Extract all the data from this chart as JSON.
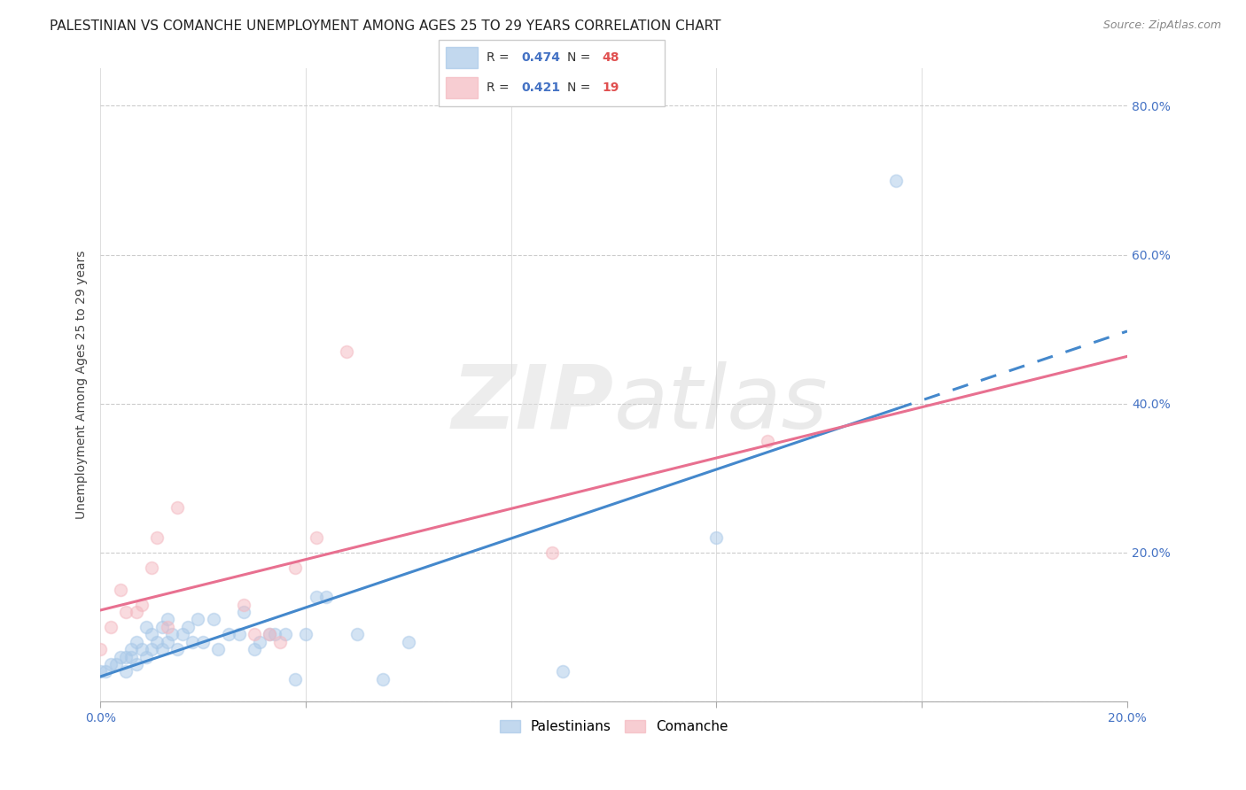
{
  "title": "PALESTINIAN VS COMANCHE UNEMPLOYMENT AMONG AGES 25 TO 29 YEARS CORRELATION CHART",
  "source": "Source: ZipAtlas.com",
  "ylabel": "Unemployment Among Ages 25 to 29 years",
  "xlim": [
    0.0,
    0.2
  ],
  "ylim": [
    0.0,
    0.85
  ],
  "xticks": [
    0.0,
    0.04,
    0.08,
    0.12,
    0.16,
    0.2
  ],
  "yticks": [
    0.0,
    0.2,
    0.4,
    0.6,
    0.8
  ],
  "ytick_labels": [
    "",
    "20.0%",
    "40.0%",
    "60.0%",
    "80.0%"
  ],
  "xtick_labels": [
    "0.0%",
    "",
    "",
    "",
    "",
    "20.0%"
  ],
  "r_palestinian": 0.474,
  "n_palestinian": 48,
  "r_comanche": 0.421,
  "n_comanche": 19,
  "palestinian_color": "#a8c8e8",
  "comanche_color": "#f4b8c0",
  "palestinian_line_color": "#4488cc",
  "comanche_line_color": "#e87090",
  "background_color": "#ffffff",
  "title_fontsize": 11,
  "source_fontsize": 9,
  "axis_label_fontsize": 10,
  "tick_fontsize": 10,
  "legend_fontsize": 11,
  "marker_size": 100,
  "marker_alpha": 0.5,
  "palestinians_x": [
    0.0,
    0.001,
    0.002,
    0.003,
    0.004,
    0.005,
    0.005,
    0.006,
    0.006,
    0.007,
    0.007,
    0.008,
    0.009,
    0.009,
    0.01,
    0.01,
    0.011,
    0.012,
    0.012,
    0.013,
    0.013,
    0.014,
    0.015,
    0.016,
    0.017,
    0.018,
    0.019,
    0.02,
    0.022,
    0.023,
    0.025,
    0.027,
    0.028,
    0.03,
    0.031,
    0.033,
    0.034,
    0.036,
    0.038,
    0.04,
    0.042,
    0.044,
    0.05,
    0.055,
    0.06,
    0.09,
    0.12,
    0.155
  ],
  "palestinians_y": [
    0.04,
    0.04,
    0.05,
    0.05,
    0.06,
    0.04,
    0.06,
    0.06,
    0.07,
    0.05,
    0.08,
    0.07,
    0.06,
    0.1,
    0.07,
    0.09,
    0.08,
    0.07,
    0.1,
    0.08,
    0.11,
    0.09,
    0.07,
    0.09,
    0.1,
    0.08,
    0.11,
    0.08,
    0.11,
    0.07,
    0.09,
    0.09,
    0.12,
    0.07,
    0.08,
    0.09,
    0.09,
    0.09,
    0.03,
    0.09,
    0.14,
    0.14,
    0.09,
    0.03,
    0.08,
    0.04,
    0.22,
    0.7
  ],
  "comanche_x": [
    0.0,
    0.002,
    0.004,
    0.005,
    0.007,
    0.008,
    0.01,
    0.011,
    0.013,
    0.015,
    0.028,
    0.03,
    0.033,
    0.035,
    0.038,
    0.042,
    0.048,
    0.088,
    0.13
  ],
  "comanche_y": [
    0.07,
    0.1,
    0.15,
    0.12,
    0.12,
    0.13,
    0.18,
    0.22,
    0.1,
    0.26,
    0.13,
    0.09,
    0.09,
    0.08,
    0.18,
    0.22,
    0.47,
    0.2,
    0.35
  ]
}
